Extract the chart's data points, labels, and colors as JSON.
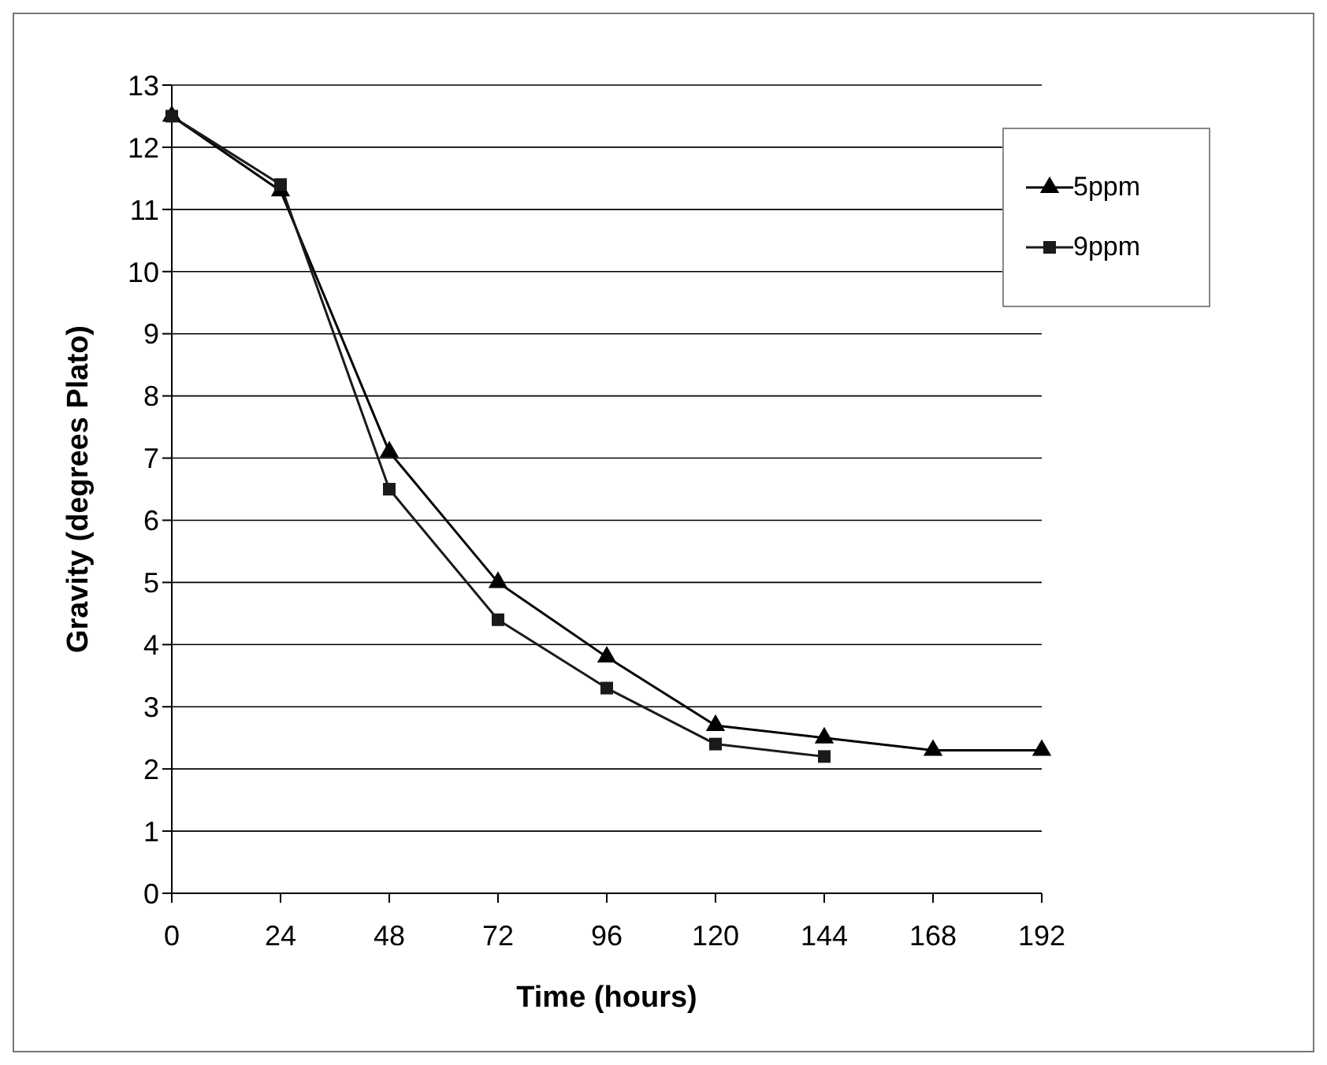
{
  "chart_data": {
    "type": "line",
    "xlabel": "Time (hours)",
    "ylabel": "Gravity (degrees Plato)",
    "categories": [
      "0",
      "24",
      "48",
      "72",
      "96",
      "120",
      "144",
      "168",
      "192"
    ],
    "series": [
      {
        "name": "5ppm",
        "color": "#000000",
        "marker": "triangle",
        "values": [
          12.5,
          11.3,
          7.1,
          5.0,
          3.8,
          2.7,
          2.5,
          2.3,
          2.3
        ]
      },
      {
        "name": "9ppm",
        "color": "#1a1a1a",
        "marker": "square",
        "values": [
          12.5,
          11.4,
          6.5,
          4.4,
          3.3,
          2.4,
          2.2,
          null,
          null
        ]
      }
    ],
    "ylim": [
      0,
      13
    ],
    "yticks": [
      0,
      1,
      2,
      3,
      4,
      5,
      6,
      7,
      8,
      9,
      10,
      11,
      12,
      13
    ],
    "grid": "y",
    "legend": "top right",
    "line_style": "solid"
  }
}
